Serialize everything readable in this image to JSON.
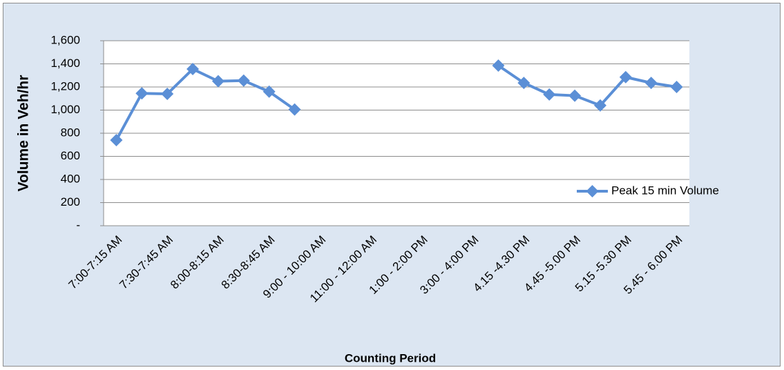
{
  "chart_data": {
    "type": "line",
    "x_label": "Counting Period",
    "y_label": "Volume in Veh/hr",
    "categories": [
      "7:00-7:15 AM",
      null,
      "7:30-7:45 AM",
      null,
      "8:00-8:15 AM",
      null,
      "8:30-8:45 AM",
      null,
      "9:00 - 10:00 AM",
      null,
      "11:00 - 12:00 AM",
      null,
      "1:00 - 2:00 PM",
      null,
      "3:00 - 4:00 PM",
      null,
      "4.15 -4.30 PM",
      null,
      "4.45 -5.00 PM",
      null,
      "5.15 -5.30 PM",
      null,
      "5.45 - 6.00 PM"
    ],
    "series": [
      {
        "name": "Peak 15 min Volume",
        "color": "#5b8fd6",
        "values": [
          740,
          1145,
          1140,
          1355,
          1250,
          1255,
          1160,
          1005,
          null,
          null,
          null,
          null,
          null,
          null,
          null,
          1385,
          1235,
          1135,
          1125,
          1040,
          1285,
          1235,
          1200
        ]
      }
    ],
    "ylim": [
      0,
      1600
    ],
    "yticks": [
      {
        "value": 0,
        "label": "-"
      },
      200,
      400,
      600,
      800,
      {
        "value": 1000,
        "label": "1,000"
      },
      {
        "value": 1200,
        "label": "1,200"
      },
      {
        "value": 1400,
        "label": "1,400"
      },
      {
        "value": 1600,
        "label": "1,600"
      }
    ],
    "grid": true,
    "legend": "right"
  }
}
